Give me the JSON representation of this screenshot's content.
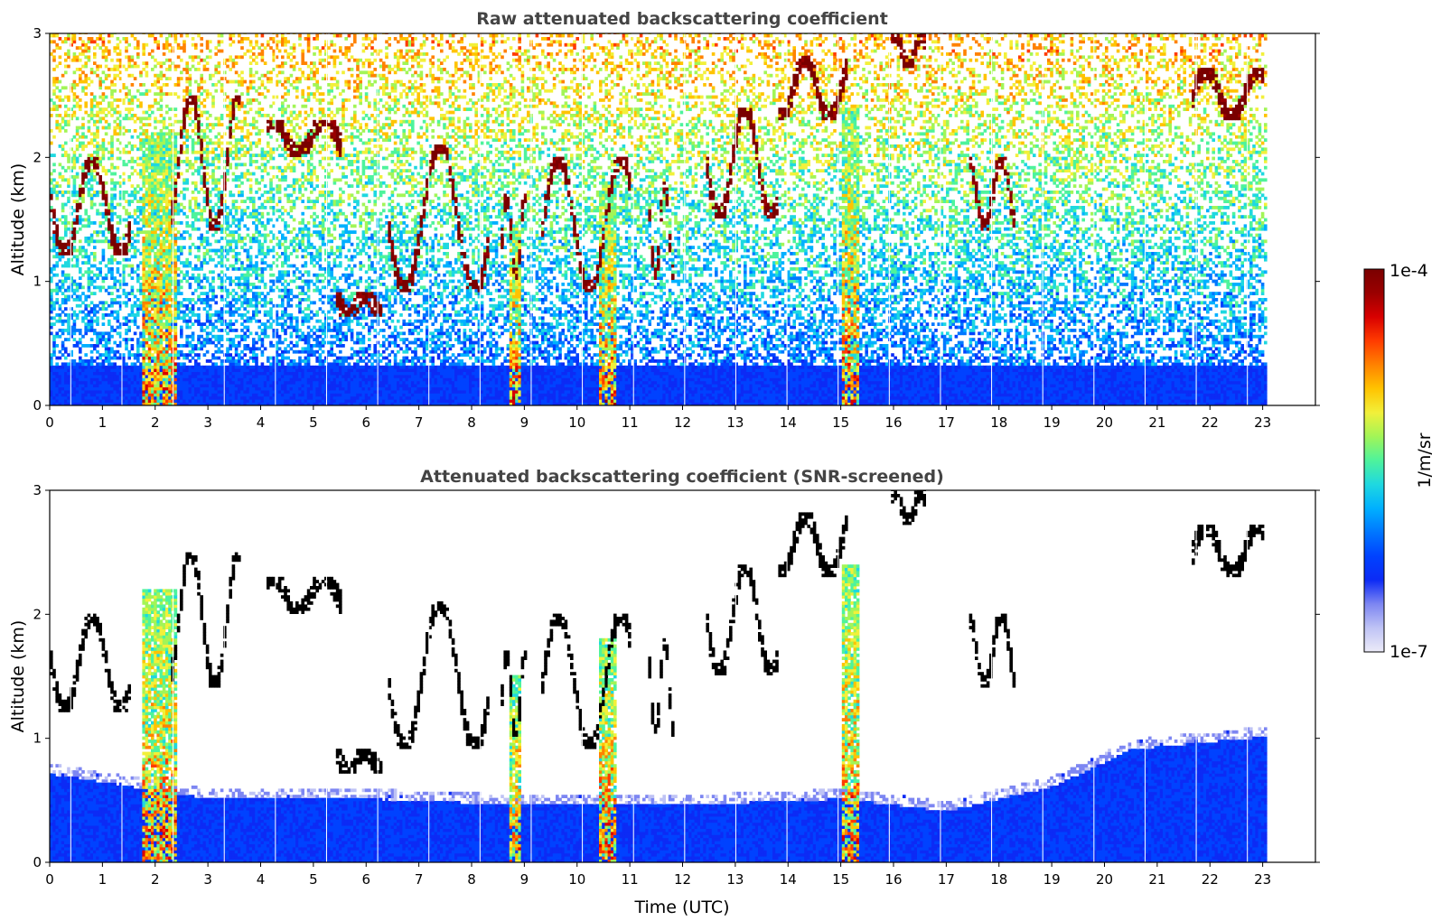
{
  "chart_data": [
    {
      "type": "heatmap",
      "title": "Raw attenuated backscattering coefficient",
      "xlabel": "",
      "ylabel": "Altitude (km)",
      "xlim": [
        0,
        24
      ],
      "ylim": [
        0,
        3
      ],
      "x_ticks": [
        "0",
        "1",
        "2",
        "3",
        "4",
        "5",
        "6",
        "7",
        "8",
        "9",
        "10",
        "11",
        "12",
        "13",
        "14",
        "15",
        "16",
        "17",
        "18",
        "19",
        "20",
        "21",
        "22",
        "23"
      ],
      "y_ticks": [
        "0",
        "1",
        "2",
        "3"
      ],
      "data_extent_hours": [
        0,
        23.05
      ],
      "boundary_layer_top_km": 0.3,
      "cloud_layers": [
        {
          "time_range": [
            0.0,
            1.5
          ],
          "altitude_range_km": [
            1.2,
            2.0
          ]
        },
        {
          "time_range": [
            2.3,
            3.6
          ],
          "altitude_range_km": [
            1.4,
            2.5
          ]
        },
        {
          "time_range": [
            4.1,
            5.5
          ],
          "altitude_range_km": [
            2.0,
            2.3
          ]
        },
        {
          "time_range": [
            5.4,
            6.3
          ],
          "altitude_range_km": [
            0.7,
            0.9
          ]
        },
        {
          "time_range": [
            6.4,
            8.3
          ],
          "altitude_range_km": [
            0.9,
            2.1
          ]
        },
        {
          "time_range": [
            8.5,
            9.0
          ],
          "altitude_range_km": [
            1.0,
            1.7
          ]
        },
        {
          "time_range": [
            9.3,
            11.0
          ],
          "altitude_range_km": [
            0.9,
            2.0
          ]
        },
        {
          "time_range": [
            11.3,
            11.8
          ],
          "altitude_range_km": [
            1.0,
            1.8
          ]
        },
        {
          "time_range": [
            12.4,
            13.8
          ],
          "altitude_range_km": [
            1.5,
            2.4
          ]
        },
        {
          "time_range": [
            13.8,
            15.1
          ],
          "altitude_range_km": [
            2.3,
            2.8
          ]
        },
        {
          "time_range": [
            15.9,
            16.6
          ],
          "altitude_range_km": [
            2.7,
            3.0
          ]
        },
        {
          "time_range": [
            17.4,
            18.3
          ],
          "altitude_range_km": [
            1.4,
            2.0
          ]
        },
        {
          "time_range": [
            21.6,
            23.0
          ],
          "altitude_range_km": [
            2.3,
            2.7
          ]
        }
      ],
      "aerosol_plumes": [
        {
          "time_range": [
            1.7,
            2.4
          ],
          "altitude_range_km": [
            0,
            2.2
          ]
        },
        {
          "time_range": [
            8.7,
            8.9
          ],
          "altitude_range_km": [
            0,
            1.5
          ]
        },
        {
          "time_range": [
            10.4,
            10.7
          ],
          "altitude_range_km": [
            0,
            1.8
          ]
        },
        {
          "time_range": [
            15.0,
            15.3
          ],
          "altitude_range_km": [
            0,
            2.4
          ]
        }
      ]
    },
    {
      "type": "heatmap",
      "title": "Attenuated backscattering coefficient (SNR-screened)",
      "xlabel": "Time (UTC)",
      "ylabel": "Altitude (km)",
      "xlim": [
        0,
        24
      ],
      "ylim": [
        0,
        3
      ],
      "x_ticks": [
        "0",
        "1",
        "2",
        "3",
        "4",
        "5",
        "6",
        "7",
        "8",
        "9",
        "10",
        "11",
        "12",
        "13",
        "14",
        "15",
        "16",
        "17",
        "18",
        "19",
        "20",
        "21",
        "22",
        "23"
      ],
      "y_ticks": [
        "0",
        "1",
        "2",
        "3"
      ],
      "data_extent_hours": [
        0,
        23.05
      ],
      "screened_layer_top_km": [
        [
          0,
          0.7
        ],
        [
          3,
          0.5
        ],
        [
          6,
          0.5
        ],
        [
          9,
          0.45
        ],
        [
          12,
          0.45
        ],
        [
          15,
          0.5
        ],
        [
          17,
          0.4
        ],
        [
          19,
          0.6
        ],
        [
          20.5,
          0.9
        ],
        [
          23,
          1.0
        ]
      ]
    }
  ],
  "colorbar": {
    "label": "1/m/sr",
    "max_label": "1e-4",
    "min_label": "1e-7",
    "scale": "log",
    "colormap": [
      "#ecebf8",
      "#bfc3f5",
      "#7d86f2",
      "#0c2bf5",
      "#0042ff",
      "#0077ff",
      "#00b0ff",
      "#1fd8e0",
      "#4ef39c",
      "#a2f557",
      "#f2f03a",
      "#ffc300",
      "#ff8200",
      "#ff3b00",
      "#d80000",
      "#9a0000",
      "#7a0000"
    ]
  }
}
